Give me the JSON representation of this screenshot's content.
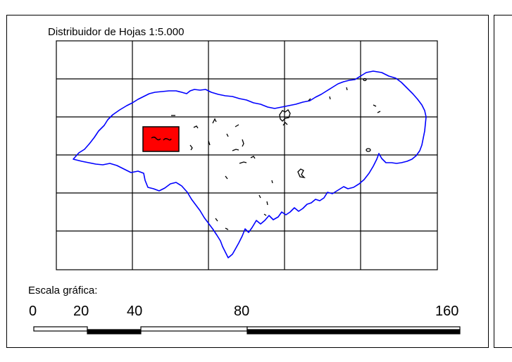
{
  "map": {
    "title": "Distribuidor de Hojas 1:5.000",
    "grid": {
      "columns": 5,
      "rows": 6
    },
    "colors": {
      "grid_lines": "#000000",
      "boundary": "#0000ff",
      "selected_sheet": "#ff0000",
      "features": "#000000"
    },
    "selected_sheet": {
      "column": 2,
      "row": 3,
      "fill": "#ff0000"
    }
  },
  "scale": {
    "label": "Escala gráfica:",
    "ticks": [
      "0",
      "20",
      "40",
      "80",
      "160"
    ]
  }
}
